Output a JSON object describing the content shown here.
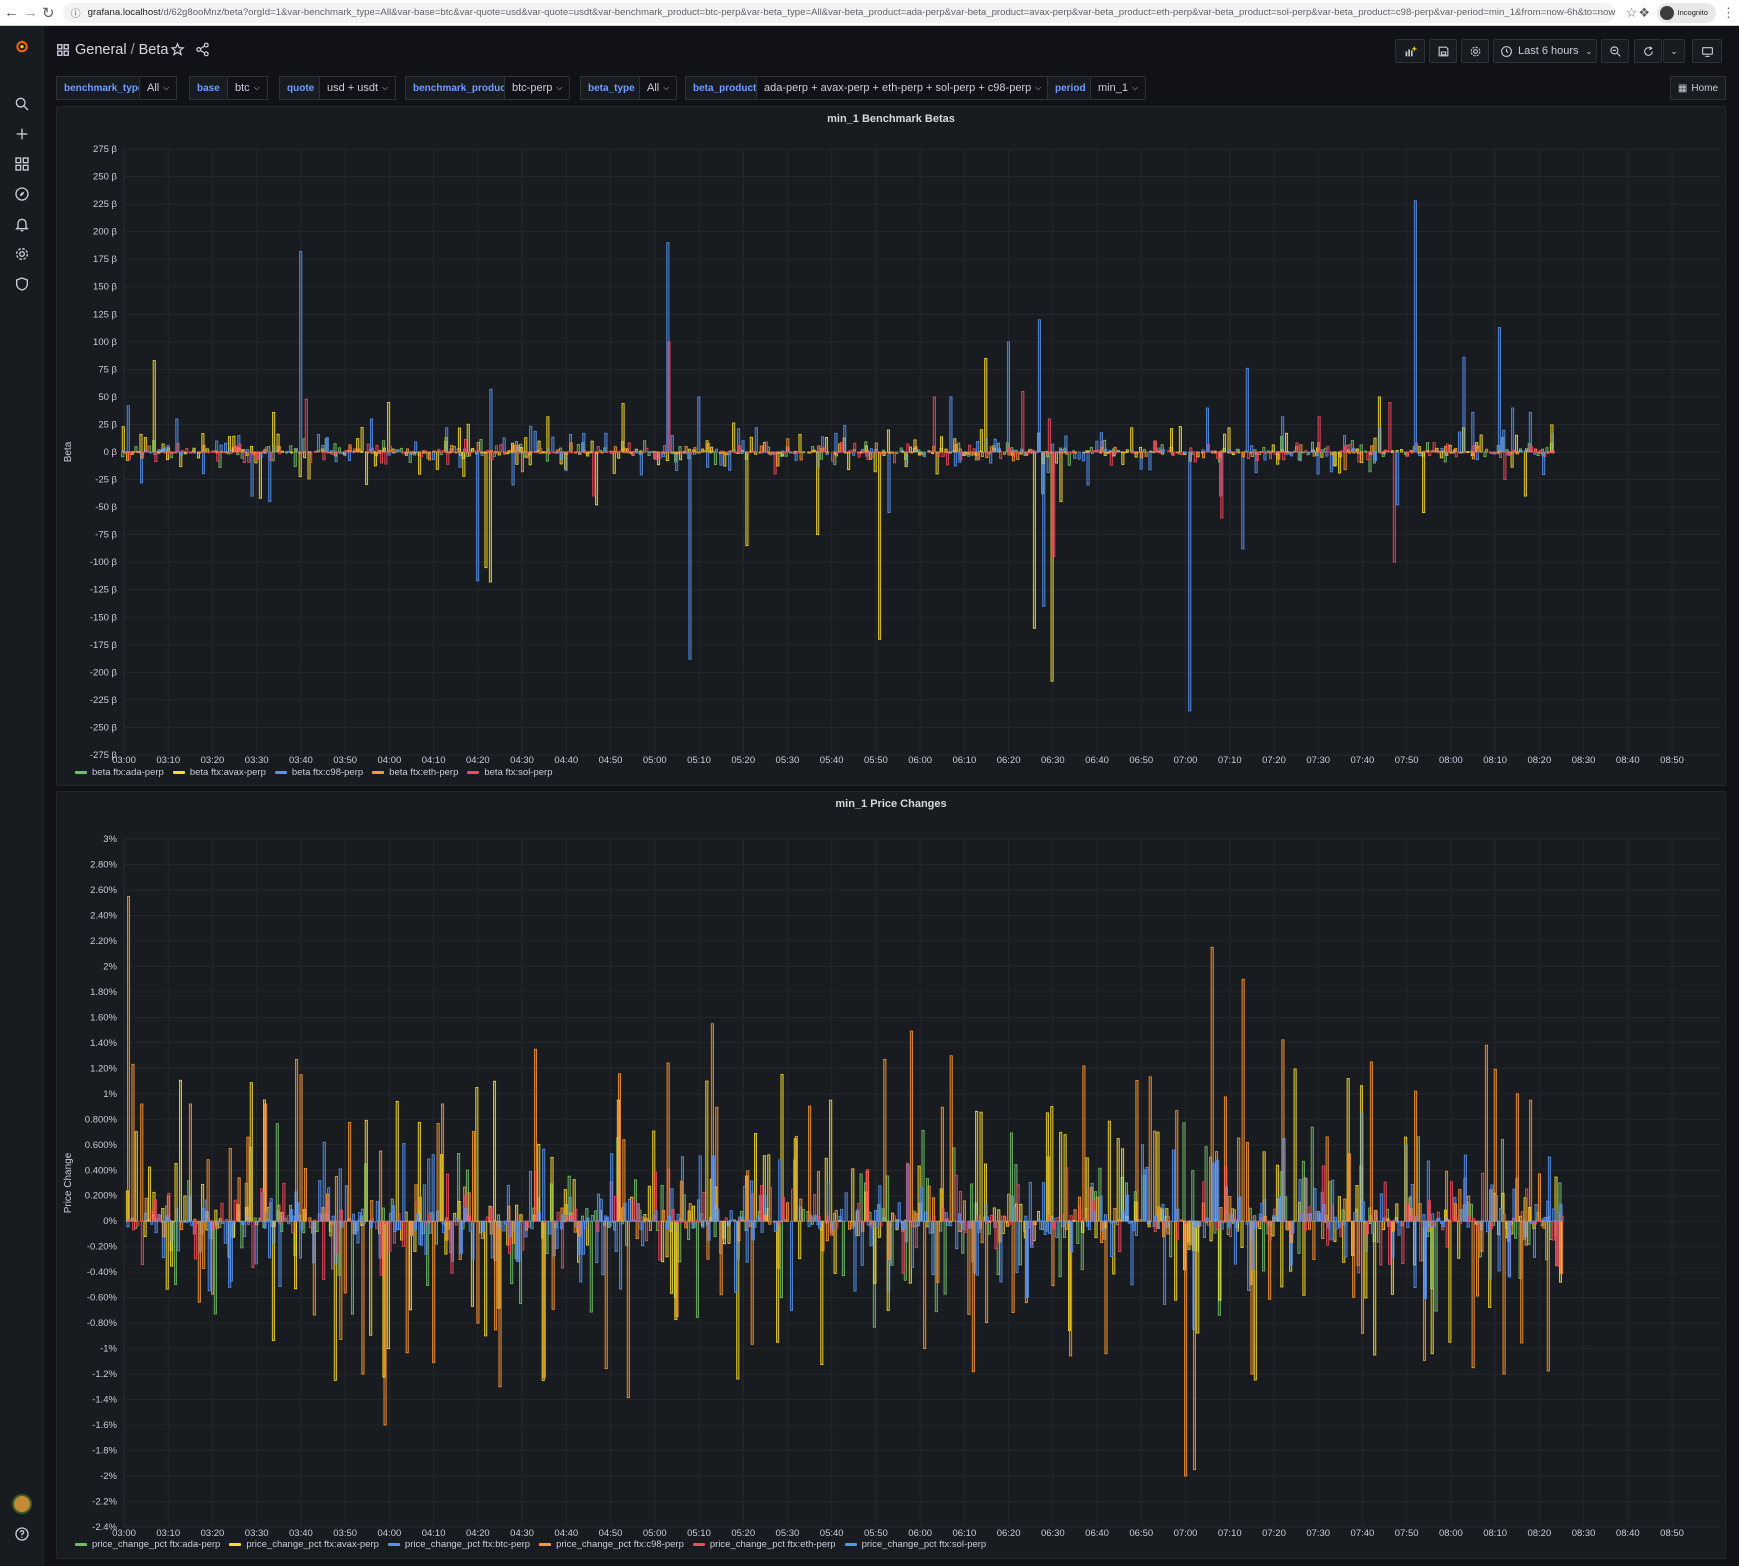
{
  "browser": {
    "url_host": "grafana.localhost",
    "url_path": "/d/62g8ooMnz/beta?orgId=1&var-benchmark_type=All&var-base=btc&var-quote=usd&var-quote=usdt&var-benchmark_product=btc-perp&var-beta_type=All&var-beta_product=ada-perp&var-beta_product=avax-perp&var-beta_product=eth-perp&var-beta_product=sol-perp&var-beta_product=c98-perp&var-period=min_1&from=now-6h&to=now",
    "profile_label": "Incognito"
  },
  "breadcrumb": {
    "folder": "General",
    "separator": "/",
    "dashboard": "Beta"
  },
  "toolbar": {
    "time_range": "Last 6 hours"
  },
  "variables": [
    {
      "label": "benchmark_type",
      "value": "All"
    },
    {
      "label": "base",
      "value": "btc"
    },
    {
      "label": "quote",
      "value": "usd + usdt"
    },
    {
      "label": "benchmark_product",
      "value": "btc-perp"
    },
    {
      "label": "beta_type",
      "value": "All"
    },
    {
      "label": "beta_product",
      "value": "ada-perp + avax-perp + eth-perp + sol-perp + c98-perp"
    },
    {
      "label": "period",
      "value": "min_1"
    }
  ],
  "home_label": "Home",
  "icons": {
    "sidemenu": [
      "grafana-logo-icon",
      "search-icon",
      "plus-icon",
      "dashboards-icon",
      "explore-icon",
      "alerting-bell-icon",
      "gear-icon",
      "shield-icon",
      "help-icon"
    ],
    "toolbar": [
      "add-panel-icon",
      "save-icon",
      "settings-icon",
      "clock-icon",
      "zoom-out-icon",
      "refresh-icon",
      "chevron-down-icon",
      "tv-mode-icon"
    ]
  },
  "colors": {
    "green": "#73bf69",
    "yellow": "#fade2a",
    "blue": "#5794f2",
    "orange": "#ff9830",
    "red": "#f2495c",
    "bg": "#111217",
    "panel": "#181b1f",
    "grid": "#25272d"
  },
  "chart_data": [
    {
      "type": "bar",
      "title": "min_1 Benchmark Betas",
      "ylabel": "Beta",
      "y_unit": "β",
      "ylim": [
        -275,
        275
      ],
      "y_ticks": [
        "275 β",
        "250 β",
        "225 β",
        "200 β",
        "175 β",
        "150 β",
        "125 β",
        "100 β",
        "75 β",
        "50 β",
        "25 β",
        "0 β",
        "-25 β",
        "-50 β",
        "-75 β",
        "-100 β",
        "-125 β",
        "-150 β",
        "-175 β",
        "-200 β",
        "-225 β",
        "-250 β",
        "-275 β"
      ],
      "x_ticks": [
        "03:00",
        "03:10",
        "03:20",
        "03:30",
        "03:40",
        "03:50",
        "04:00",
        "04:10",
        "04:20",
        "04:30",
        "04:40",
        "04:50",
        "05:00",
        "05:10",
        "05:20",
        "05:30",
        "05:40",
        "05:50",
        "06:00",
        "06:10",
        "06:20",
        "06:30",
        "06:40",
        "06:50",
        "07:00",
        "07:10",
        "07:20",
        "07:30",
        "07:40",
        "07:50",
        "08:00",
        "08:10",
        "08:20",
        "08:30",
        "08:40",
        "08:50"
      ],
      "data_end_minute": 323,
      "grid": true,
      "legend_placement": "bottom-left",
      "series": [
        {
          "name": "beta ftx:ada-perp",
          "color": "#73bf69",
          "typical": 6,
          "spikes": [
            [
              22,
              -14
            ],
            [
              46,
              12
            ],
            [
              125,
              -9
            ],
            [
              198,
              8
            ],
            [
              208,
              -38
            ],
            [
              214,
              -12
            ],
            [
              282,
              -18
            ]
          ]
        },
        {
          "name": "beta ftx:avax-perp",
          "color": "#fade2a",
          "typical": 12,
          "spikes": [
            [
              7,
              83
            ],
            [
              31,
              -42
            ],
            [
              34,
              36
            ],
            [
              60,
              45
            ],
            [
              82,
              -105
            ],
            [
              83,
              -118
            ],
            [
              96,
              32
            ],
            [
              107,
              -48
            ],
            [
              113,
              44
            ],
            [
              141,
              -85
            ],
            [
              157,
              -75
            ],
            [
              171,
              -170
            ],
            [
              195,
              85
            ],
            [
              206,
              -160
            ],
            [
              210,
              -208
            ],
            [
              212,
              -45
            ],
            [
              228,
              22
            ],
            [
              284,
              50
            ],
            [
              303,
              22
            ],
            [
              317,
              -40
            ],
            [
              294,
              -55
            ],
            [
              173,
              20
            ]
          ]
        },
        {
          "name": "beta ftx:c98-perp",
          "color": "#5794f2",
          "typical": 10,
          "spikes": [
            [
              1,
              42
            ],
            [
              4,
              -28
            ],
            [
              12,
              30
            ],
            [
              29,
              -40
            ],
            [
              33,
              -45
            ],
            [
              40,
              182
            ],
            [
              56,
              30
            ],
            [
              80,
              -117
            ],
            [
              83,
              57
            ],
            [
              88,
              -30
            ],
            [
              123,
              190
            ],
            [
              128,
              -188
            ],
            [
              130,
              50
            ],
            [
              143,
              22
            ],
            [
              173,
              -55
            ],
            [
              187,
              50
            ],
            [
              200,
              100
            ],
            [
              207,
              120
            ],
            [
              208,
              -140
            ],
            [
              218,
              -30
            ],
            [
              241,
              -235
            ],
            [
              245,
              40
            ],
            [
              248,
              -40
            ],
            [
              253,
              -88
            ],
            [
              254,
              76
            ],
            [
              292,
              228
            ],
            [
              288,
              -48
            ],
            [
              303,
              86
            ],
            [
              305,
              36
            ],
            [
              311,
              113
            ],
            [
              314,
              40
            ],
            [
              318,
              36
            ],
            [
              262,
              32
            ],
            [
              270,
              -20
            ]
          ]
        },
        {
          "name": "beta ftx:eth-perp",
          "color": "#ff9830",
          "typical": 4,
          "spikes": [
            [
              90,
              -18
            ],
            [
              150,
              12
            ],
            [
              233,
              10
            ],
            [
              276,
              -16
            ]
          ]
        },
        {
          "name": "beta ftx:sol-perp",
          "color": "#f2495c",
          "typical": 5,
          "spikes": [
            [
              41,
              48
            ],
            [
              106,
              -40
            ],
            [
              123,
              100
            ],
            [
              147,
              -20
            ],
            [
              183,
              50
            ],
            [
              203,
              55
            ],
            [
              209,
              30
            ],
            [
              210,
              -95
            ],
            [
              248,
              -60
            ],
            [
              270,
              32
            ],
            [
              287,
              -100
            ],
            [
              286,
              45
            ],
            [
              312,
              -25
            ],
            [
              223,
              -12
            ]
          ]
        }
      ]
    },
    {
      "type": "bar",
      "title": "min_1 Price Changes",
      "ylabel": "Price Change",
      "y_unit": "%",
      "ylim": [
        -2.4,
        3.0
      ],
      "y_ticks": [
        "3%",
        "2.80%",
        "2.60%",
        "2.40%",
        "2.20%",
        "2%",
        "1.80%",
        "1.60%",
        "1.40%",
        "1.20%",
        "1%",
        "0.800%",
        "0.600%",
        "0.400%",
        "0.200%",
        "0%",
        "-0.20%",
        "-0.40%",
        "-0.60%",
        "-0.80%",
        "-1%",
        "-1.2%",
        "-1.4%",
        "-1.6%",
        "-1.8%",
        "-2%",
        "-2.2%",
        "-2.4%"
      ],
      "x_ticks": [
        "03:00",
        "03:10",
        "03:20",
        "03:30",
        "03:40",
        "03:50",
        "04:00",
        "04:10",
        "04:20",
        "04:30",
        "04:40",
        "04:50",
        "05:00",
        "05:10",
        "05:20",
        "05:30",
        "05:40",
        "05:50",
        "06:00",
        "06:10",
        "06:20",
        "06:30",
        "06:40",
        "06:50",
        "07:00",
        "07:10",
        "07:20",
        "07:30",
        "07:40",
        "07:50",
        "08:00",
        "08:10",
        "08:20",
        "08:30",
        "08:40",
        "08:50"
      ],
      "data_end_minute": 325,
      "grid": true,
      "legend_placement": "bottom-left",
      "series": [
        {
          "name": "price_change_pct ftx:ada-perp",
          "color": "#73bf69",
          "typical": 0.35,
          "spikes": []
        },
        {
          "name": "price_change_pct ftx:avax-perp",
          "color": "#fade2a",
          "typical": 0.55,
          "spikes": [
            [
              60,
              -1.0
            ],
            [
              80,
              1.05
            ],
            [
              82,
              -0.9
            ],
            [
              95,
              -1.25
            ],
            [
              148,
              -0.95
            ],
            [
              160,
              0.95
            ],
            [
              210,
              0.9
            ],
            [
              283,
              -1.05
            ],
            [
              300,
              -0.95
            ]
          ]
        },
        {
          "name": "price_change_pct ftx:btc-perp",
          "color": "#5794f2",
          "typical": 0.25,
          "spikes": [
            [
              151,
              -0.7
            ],
            [
              242,
              -0.85
            ],
            [
              280,
              0.85
            ],
            [
              290,
              0.6
            ]
          ]
        },
        {
          "name": "price_change_pct ftx:c98-perp",
          "color": "#ff9830",
          "typical": 0.65,
          "spikes": [
            [
              1,
              2.55
            ],
            [
              4,
              0.92
            ],
            [
              15,
              0.92
            ],
            [
              32,
              0.92
            ],
            [
              40,
              1.15
            ],
            [
              54,
              -1.2
            ],
            [
              59,
              -1.6
            ],
            [
              72,
              0.92
            ],
            [
              93,
              1.35
            ],
            [
              133,
              1.55
            ],
            [
              181,
              -1.0
            ],
            [
              240,
              -2.0
            ],
            [
              242,
              -1.95
            ],
            [
              246,
              2.15
            ],
            [
              253,
              1.9
            ],
            [
              255,
              -1.2
            ],
            [
              282,
              1.25
            ],
            [
              312,
              -1.2
            ],
            [
              315,
              1.0
            ],
            [
              318,
              0.95
            ],
            [
              305,
              -1.15
            ]
          ]
        },
        {
          "name": "price_change_pct ftx:eth-perp",
          "color": "#f2495c",
          "typical": 0.2,
          "spikes": []
        },
        {
          "name": "price_change_pct ftx:sol-perp",
          "color": "#5794f2",
          "typical": 0.3,
          "spikes": [
            [
              230,
              0.6
            ],
            [
              262,
              0.65
            ]
          ]
        }
      ]
    }
  ]
}
